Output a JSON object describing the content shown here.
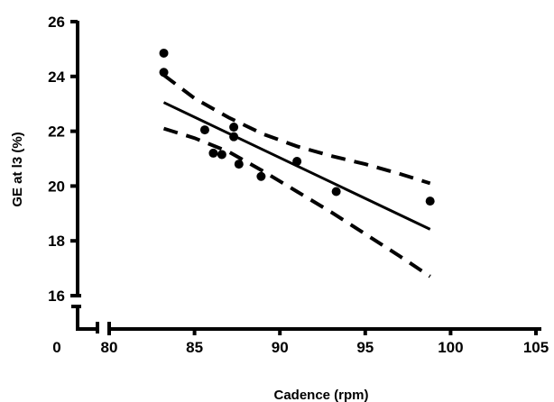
{
  "chart_data": {
    "type": "scatter",
    "title": "",
    "xlabel": "Cadence (rpm)",
    "ylabel": "GE at l3 (%)",
    "xlim": [
      80,
      105
    ],
    "ylim": [
      16,
      26
    ],
    "x_ticks": [
      "80",
      "85",
      "90",
      "95",
      "100",
      "105"
    ],
    "y_ticks": [
      "16",
      "18",
      "20",
      "22",
      "24",
      "26"
    ],
    "origin_label": "0",
    "axis_breaks": true,
    "grid": false,
    "series": [
      {
        "type": "scatter",
        "x": [
          83.2,
          83.2,
          85.6,
          86.1,
          86.6,
          87.3,
          87.3,
          87.6,
          88.9,
          91.0,
          93.3,
          98.8
        ],
        "y": [
          24.85,
          24.15,
          22.05,
          21.2,
          21.15,
          22.15,
          21.8,
          20.8,
          20.35,
          20.9,
          19.8,
          19.45
        ]
      },
      {
        "type": "line",
        "role": "regression",
        "x": [
          83.2,
          98.8
        ],
        "y": [
          23.05,
          18.42
        ]
      },
      {
        "type": "line",
        "role": "upper-95ci",
        "x": [
          83.2,
          85.0,
          87.0,
          89.0,
          91.0,
          93.0,
          95.0,
          97.0,
          98.8
        ],
        "y": [
          24.05,
          23.2,
          22.5,
          21.9,
          21.45,
          21.1,
          20.8,
          20.45,
          20.1
        ]
      },
      {
        "type": "line",
        "role": "lower-95ci",
        "x": [
          83.2,
          85.0,
          87.0,
          89.0,
          91.0,
          93.0,
          95.0,
          97.0,
          98.8
        ],
        "y": [
          22.1,
          21.75,
          21.25,
          20.55,
          19.8,
          19.05,
          18.25,
          17.45,
          16.7
        ]
      }
    ]
  }
}
